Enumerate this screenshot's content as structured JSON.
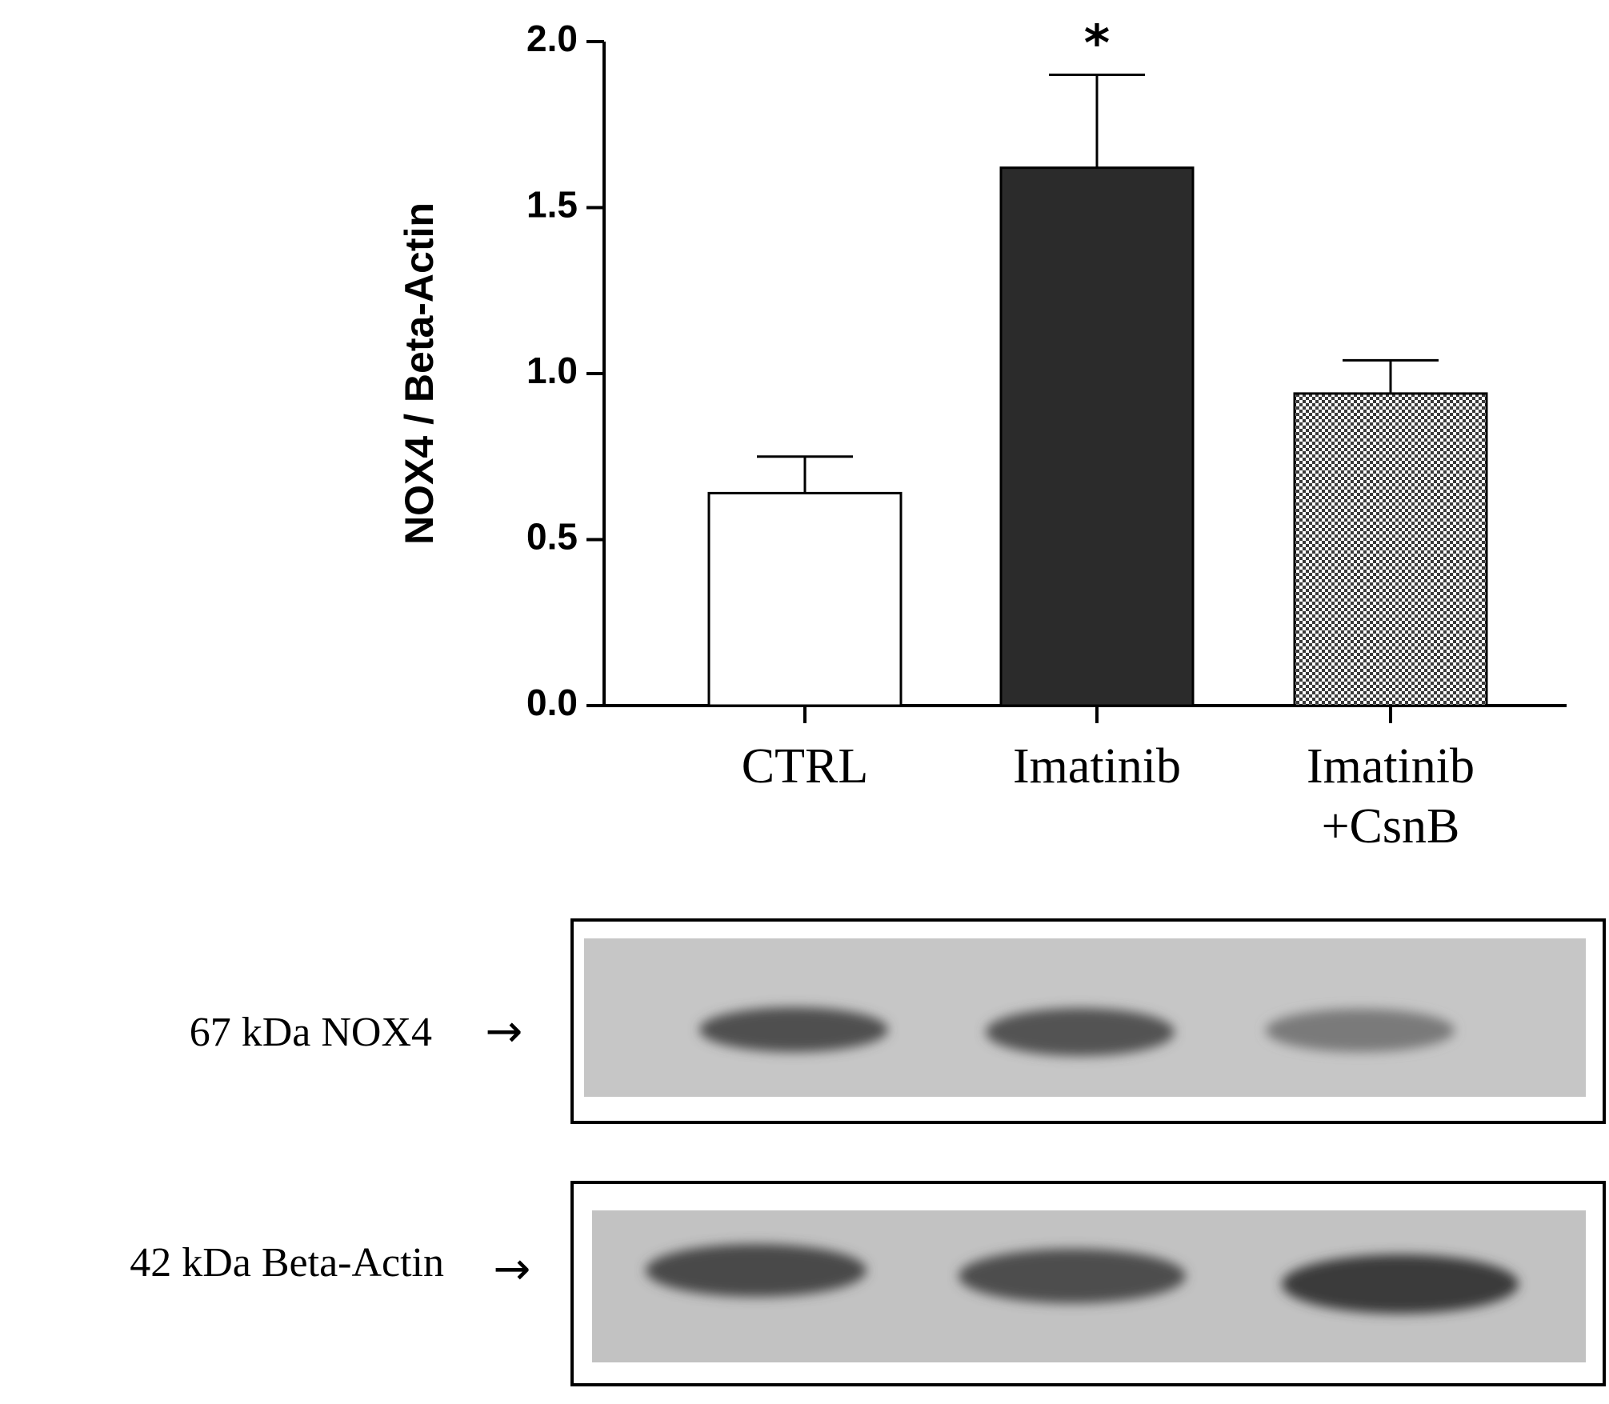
{
  "chart_data": {
    "type": "bar",
    "ylabel": "NOX4 / Beta-Actin",
    "xlabel": "",
    "ylim": [
      0,
      2.0
    ],
    "yticks": [
      "0.0",
      "0.5",
      "1.0",
      "1.5",
      "2.0"
    ],
    "grid": false,
    "categories": [
      {
        "lines": [
          "CTRL"
        ]
      },
      {
        "lines": [
          "Imatinib"
        ]
      },
      {
        "lines": [
          "Imatinib",
          "+CsnB"
        ]
      }
    ],
    "values": [
      0.64,
      1.62,
      0.94
    ],
    "errors": [
      0.11,
      0.28,
      0.1
    ],
    "fills": [
      "white",
      "#2b2b2b",
      "checker"
    ],
    "significance": [
      "",
      "*",
      ""
    ]
  },
  "blots": [
    {
      "label": "67 kDa NOX4",
      "arrow": "→"
    },
    {
      "label": "42 kDa Beta-Actin",
      "arrow": "→"
    }
  ],
  "colors": {
    "axis": "#000000",
    "dark_bar": "#2b2b2b",
    "blot_bg": "#c4c4c4",
    "band": "#4a4a4a"
  }
}
